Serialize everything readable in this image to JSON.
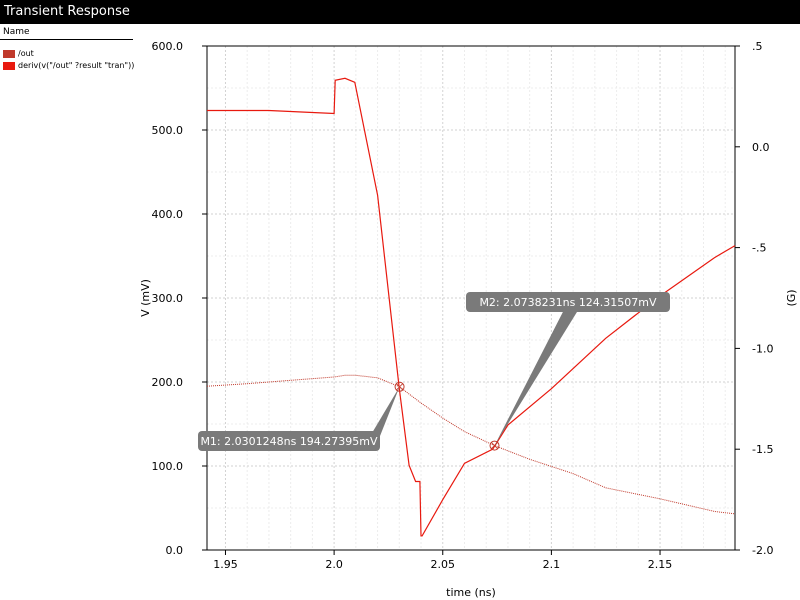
{
  "window": {
    "title": "Transient Response"
  },
  "legend": {
    "header": "Name",
    "items": [
      {
        "label": "/out",
        "color": "#c0392b"
      },
      {
        "label": "deriv(v(\"/out\" ?result \"tran\"))",
        "color": "#e8190f"
      }
    ]
  },
  "chart_data": {
    "type": "line",
    "xlabel": "time (ns)",
    "ylabel": "V (mV)",
    "y2label": "(G)",
    "xlim": [
      1.9415,
      2.1845
    ],
    "ylim": [
      0,
      600
    ],
    "y2lim": [
      -2.0,
      0.5
    ],
    "xticks": [
      1.95,
      2.0,
      2.05,
      2.1,
      2.15
    ],
    "xtick_labels": [
      "1.95",
      "2.0",
      "2.05",
      "2.1",
      "2.15"
    ],
    "yticks": [
      0,
      100,
      200,
      300,
      400,
      500,
      600
    ],
    "ytick_labels": [
      "0.0",
      "100.0",
      "200.0",
      "300.0",
      "400.0",
      "500.0",
      "600.0"
    ],
    "y2ticks": [
      -2.0,
      -1.5,
      -1.0,
      -0.5,
      0.0,
      0.5
    ],
    "y2tick_labels": [
      "-2.0",
      "-1.5",
      "-1.0",
      "-.5",
      "0.0",
      ".5"
    ],
    "grid": true,
    "series": [
      {
        "name": "/out",
        "axis": "left",
        "style": "dotted",
        "color": "#c0392b",
        "x": [
          1.9415,
          1.96,
          1.98,
          2.0,
          2.005,
          2.01,
          2.02,
          2.0301,
          2.04,
          2.05,
          2.06,
          2.0738,
          2.09,
          2.11,
          2.125,
          2.15,
          2.175,
          2.1845
        ],
        "y": [
          195,
          198,
          202,
          206,
          208,
          208,
          205,
          194.3,
          175,
          157,
          141,
          124.3,
          108,
          91,
          74,
          61,
          46,
          43
        ]
      },
      {
        "name": "deriv(v(\"/out\" ?result \"tran\"))",
        "axis": "right",
        "style": "solid",
        "color": "#e8190f",
        "x": [
          1.9415,
          1.97,
          1.99,
          2.0,
          2.0005,
          2.005,
          2.0095,
          2.02,
          2.03,
          2.0345,
          2.0375,
          2.0395,
          2.04,
          2.0405,
          2.05,
          2.06,
          2.073,
          2.08,
          2.1,
          2.125,
          2.15,
          2.175,
          2.1845
        ],
        "y": [
          0.18,
          0.18,
          0.17,
          0.165,
          0.33,
          0.34,
          0.32,
          -0.24,
          -1.2,
          -1.58,
          -1.66,
          -1.66,
          -1.93,
          -1.93,
          -1.75,
          -1.57,
          -1.5,
          -1.38,
          -1.2,
          -0.95,
          -0.74,
          -0.55,
          -0.49
        ]
      }
    ],
    "markers": [
      {
        "label": "M1: 2.0301248ns 194.27395mV",
        "x": 2.0301248,
        "y": 194.27395
      },
      {
        "label": "M2: 2.0738231ns 124.31507mV",
        "x": 2.0738231,
        "y": 124.31507
      }
    ]
  }
}
